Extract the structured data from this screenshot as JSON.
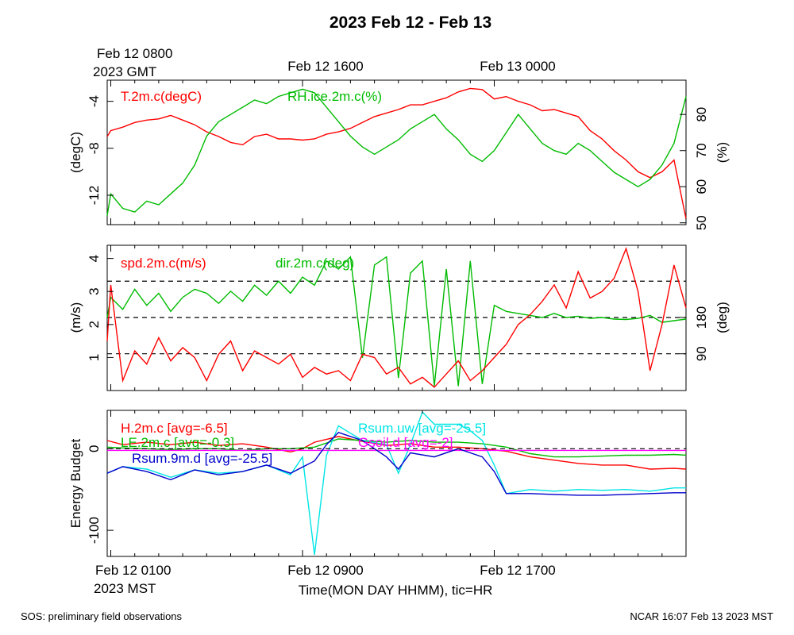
{
  "chart_data": {
    "title": "2023 Feb 12 - Feb 13",
    "top_time_axis": {
      "first_label_line1": "Feb 12 0800",
      "first_label_line2": "2023 GMT",
      "labels": [
        "Feb 12 1600",
        "Feb 13 0000"
      ]
    },
    "bottom_time_axis": {
      "first_label_line1": "Feb 12 0100",
      "first_label_line2": "2023 MST",
      "labels": [
        "Feb 12 0900",
        "Feb 12 1700"
      ],
      "xlabel": "Time(MON DAY HHMM), tic=HR"
    },
    "time_range_hours_mst": [
      0.85,
      25.0
    ],
    "footer_left": "SOS: preliminary field observations",
    "footer_right": "NCAR 16:07 Feb 13 2023 MST",
    "panels": [
      {
        "type": "line",
        "ylabel_left": "(degC)",
        "ylabel_right": "(%)",
        "left_ylim": [
          -14.5,
          -2.2
        ],
        "left_ticks": [
          "-4",
          "-8",
          "-12"
        ],
        "left_tick_values": [
          -4,
          -8,
          -12
        ],
        "right_ylim": [
          49.5,
          89.5
        ],
        "right_ticks": [
          "80",
          "70",
          "60",
          "50"
        ],
        "right_tick_values": [
          80,
          70,
          60,
          50
        ],
        "series": [
          {
            "name": "T.2m.c(degC)",
            "axis": "left",
            "color": "#ff0000",
            "x": [
              0.85,
              1,
              1.5,
              2,
              2.5,
              3,
              3.5,
              4,
              4.5,
              5,
              5.5,
              6,
              6.5,
              7,
              7.5,
              8,
              8.5,
              9,
              9.5,
              10,
              10.5,
              11,
              11.5,
              12,
              12.5,
              13,
              13.5,
              14,
              14.5,
              15,
              15.5,
              16,
              16.5,
              17,
              17.5,
              18,
              18.5,
              19,
              19.5,
              20,
              20.5,
              21,
              21.5,
              22,
              22.5,
              23,
              23.5,
              24,
              24.5,
              25
            ],
            "values": [
              -7,
              -6.5,
              -6.2,
              -5.8,
              -5.6,
              -5.5,
              -5.2,
              -5.6,
              -6.0,
              -6.6,
              -7.0,
              -7.5,
              -7.7,
              -7.0,
              -6.8,
              -7.2,
              -7.2,
              -7.3,
              -7.2,
              -6.8,
              -6.6,
              -6.3,
              -5.8,
              -5.3,
              -5.0,
              -4.7,
              -4.3,
              -4.3,
              -4.0,
              -3.7,
              -3.2,
              -2.9,
              -3.0,
              -3.8,
              -3.6,
              -4.0,
              -4.3,
              -4.8,
              -4.7,
              -5.0,
              -5.3,
              -6.5,
              -7.2,
              -8.2,
              -9.0,
              -10.0,
              -10.5,
              -10.0,
              -9.0,
              -14.0
            ]
          },
          {
            "name": "RH.ice.2m.c(%)",
            "axis": "right",
            "color": "#00bb00",
            "x": [
              0.85,
              1,
              1.5,
              2,
              2.5,
              3,
              3.5,
              4,
              4.5,
              5,
              5.5,
              6,
              6.5,
              7,
              7.5,
              8,
              8.5,
              9,
              9.5,
              10,
              10.5,
              11,
              11.5,
              12,
              12.5,
              13,
              13.5,
              14,
              14.5,
              15,
              15.5,
              16,
              16.5,
              17,
              17.5,
              18,
              18.5,
              19,
              19.5,
              20,
              20.5,
              21,
              21.5,
              22,
              22.5,
              23,
              23.5,
              24,
              24.5,
              25
            ],
            "values": [
              52,
              58,
              54,
              53,
              56,
              55,
              58,
              61,
              66,
              74,
              78,
              80,
              82,
              84,
              83,
              85,
              86,
              87,
              86,
              82,
              78,
              74,
              71,
              69,
              71,
              73,
              76,
              78,
              80,
              76,
              73,
              69,
              67,
              70,
              75,
              80,
              76,
              72,
              70,
              69,
              72,
              70,
              67,
              64,
              62,
              60,
              62,
              66,
              72,
              85
            ]
          }
        ]
      },
      {
        "type": "line",
        "ylabel_left": "(m/s)",
        "ylabel_right": "(deg)",
        "left_ylim": [
          0,
          4.4
        ],
        "left_ticks": [
          "4",
          "3",
          "2",
          "1"
        ],
        "left_tick_values": [
          4,
          3,
          2,
          1
        ],
        "right_ylim": [
          -1.1,
          359
        ],
        "right_ticks": [
          "180",
          "90"
        ],
        "right_tick_values": [
          180,
          90
        ],
        "reference_lines_deg": [
          90,
          180,
          270
        ],
        "series": [
          {
            "name": "spd.2m.c(m/s)",
            "axis": "left",
            "color": "#ff0000",
            "x": [
              0.85,
              1,
              1.5,
              2,
              2.5,
              3,
              3.5,
              4,
              4.5,
              5,
              5.5,
              6,
              6.5,
              7,
              7.5,
              8,
              8.5,
              9,
              9.5,
              10,
              10.5,
              11,
              11.5,
              12,
              12.5,
              13,
              13.5,
              14,
              14.5,
              15,
              15.5,
              16,
              16.5,
              17,
              17.5,
              18,
              18.5,
              19,
              19.5,
              20,
              20.5,
              21,
              21.5,
              22,
              22.5,
              23,
              23.5,
              24,
              24.5,
              25
            ],
            "values": [
              1.5,
              3.2,
              0.3,
              1.2,
              0.8,
              1.6,
              0.9,
              1.3,
              1.0,
              0.3,
              1.1,
              1.5,
              0.6,
              1.2,
              1.0,
              0.8,
              1.1,
              0.4,
              0.7,
              0.5,
              0.6,
              0.3,
              1.1,
              1.0,
              0.5,
              0.7,
              0.2,
              0.4,
              0.1,
              0.5,
              0.9,
              0.3,
              0.6,
              1.0,
              1.4,
              2.0,
              2.3,
              2.7,
              3.2,
              2.5,
              3.6,
              2.8,
              3.0,
              3.4,
              4.3,
              3.0,
              0.6,
              2.0,
              3.8,
              2.5
            ]
          },
          {
            "name": "dir.2m.c(deg)",
            "axis": "right",
            "color": "#00bb00",
            "x": [
              0.85,
              1,
              1.5,
              2,
              2.5,
              3,
              3.5,
              4,
              4.5,
              5,
              5.5,
              6,
              6.5,
              7,
              7.5,
              8,
              8.5,
              9,
              9.5,
              10,
              10.5,
              11,
              11.5,
              12,
              12.5,
              13,
              13.5,
              14,
              14.5,
              15,
              15.5,
              16,
              16.5,
              17,
              17.5,
              18,
              18.5,
              19,
              19.5,
              20,
              20.5,
              21,
              21.5,
              22,
              22.5,
              23,
              23.5,
              24,
              24.5,
              25
            ],
            "values": [
              180,
              230,
              200,
              250,
              210,
              240,
              195,
              230,
              250,
              240,
              215,
              245,
              220,
              260,
              235,
              270,
              240,
              280,
              260,
              320,
              300,
              330,
              80,
              310,
              330,
              30,
              290,
              320,
              10,
              300,
              10,
              320,
              15,
              210,
              195,
              190,
              185,
              180,
              190,
              180,
              183,
              178,
              180,
              176,
              175,
              178,
              185,
              168,
              172,
              176
            ]
          }
        ]
      },
      {
        "type": "line",
        "ylabel_left": "Energy Budget",
        "ylim": [
          -132,
          47
        ],
        "left_ticks": [
          "0",
          "-100"
        ],
        "left_tick_values": [
          0,
          -100
        ],
        "reference_line": 0,
        "series": [
          {
            "name": "H.2m.c [avg=-6.5]",
            "color": "#ff0000",
            "x": [
              0.85,
              1.5,
              2.5,
              3.5,
              4.5,
              5.5,
              6.5,
              7.5,
              8.5,
              9.0,
              9.5,
              10.5,
              11.5,
              12.5,
              13.5,
              14.5,
              15.5,
              16.5,
              17.5,
              18.5,
              19.5,
              20.5,
              21.5,
              22.5,
              23.5,
              24.5,
              25
            ],
            "values": [
              10,
              5,
              8,
              5,
              8,
              4,
              6,
              2,
              -4,
              0,
              8,
              15,
              9,
              4,
              6,
              2,
              2,
              0,
              -3,
              -10,
              -14,
              -18,
              -20,
              -20,
              -25,
              -24,
              -25
            ]
          },
          {
            "name": "LE.2m.c [avg=-0.3]",
            "color": "#00bb00",
            "x": [
              0.85,
              1.5,
              2.5,
              3.5,
              4.5,
              5.5,
              6.5,
              7.5,
              8.5,
              9.5,
              10.5,
              11.5,
              12.5,
              13.5,
              14.5,
              15.5,
              16.5,
              17.5,
              18.5,
              19.5,
              20.5,
              21.5,
              22.5,
              23.5,
              24.5,
              25
            ],
            "values": [
              2,
              1,
              0,
              -1,
              0,
              0,
              -2,
              0,
              0,
              2,
              12,
              10,
              8,
              10,
              8,
              8,
              6,
              2,
              -6,
              -10,
              -10,
              -9,
              -8,
              -8,
              -7,
              -8
            ]
          },
          {
            "name": "Rsum.uw [avg=-25.5]",
            "color": "#00e5e5",
            "x": [
              0.85,
              1.5,
              2.5,
              3.5,
              4.5,
              5.5,
              6.5,
              7.5,
              8.5,
              9.0,
              9.5,
              10.0,
              10.5,
              11.5,
              12.5,
              13.0,
              13.5,
              14.0,
              14.5,
              15.5,
              16.0,
              16.5,
              17.0,
              17.5,
              18.5,
              19.5,
              20.5,
              21.5,
              22.5,
              23.5,
              24.5,
              25
            ],
            "values": [
              -30,
              -22,
              -25,
              -35,
              -26,
              -30,
              -28,
              -20,
              -32,
              -10,
              -130,
              -8,
              28,
              10,
              5,
              -30,
              5,
              45,
              30,
              30,
              22,
              10,
              -20,
              -55,
              -50,
              -52,
              -50,
              -51,
              -50,
              -52,
              -48,
              -48
            ]
          },
          {
            "name": "Gsoil.d [avg=-2]",
            "color": "#ff00ff",
            "x": [
              0.85,
              5,
              10,
              15,
              20,
              25
            ],
            "values": [
              -2,
              -2,
              -2,
              -2,
              -2,
              -2
            ]
          },
          {
            "name": "Rsum.9m.d [avg=-25.5]",
            "color": "#0000cc",
            "x": [
              0.85,
              1.5,
              2.5,
              3.5,
              4.5,
              5.5,
              6.5,
              7.5,
              8.5,
              9.5,
              10.0,
              10.5,
              11.5,
              12.5,
              13.0,
              13.5,
              14.5,
              15.5,
              16.0,
              16.5,
              17.0,
              17.5,
              18.5,
              19.5,
              20.5,
              21.5,
              22.5,
              23.5,
              24.5,
              25
            ],
            "values": [
              -30,
              -22,
              -28,
              -38,
              -26,
              -32,
              -28,
              -20,
              -30,
              -15,
              5,
              20,
              10,
              -10,
              -25,
              -5,
              -10,
              0,
              -5,
              -10,
              -28,
              -55,
              -55,
              -56,
              -57,
              -57,
              -56,
              -55,
              -54,
              -54
            ]
          }
        ]
      }
    ]
  }
}
